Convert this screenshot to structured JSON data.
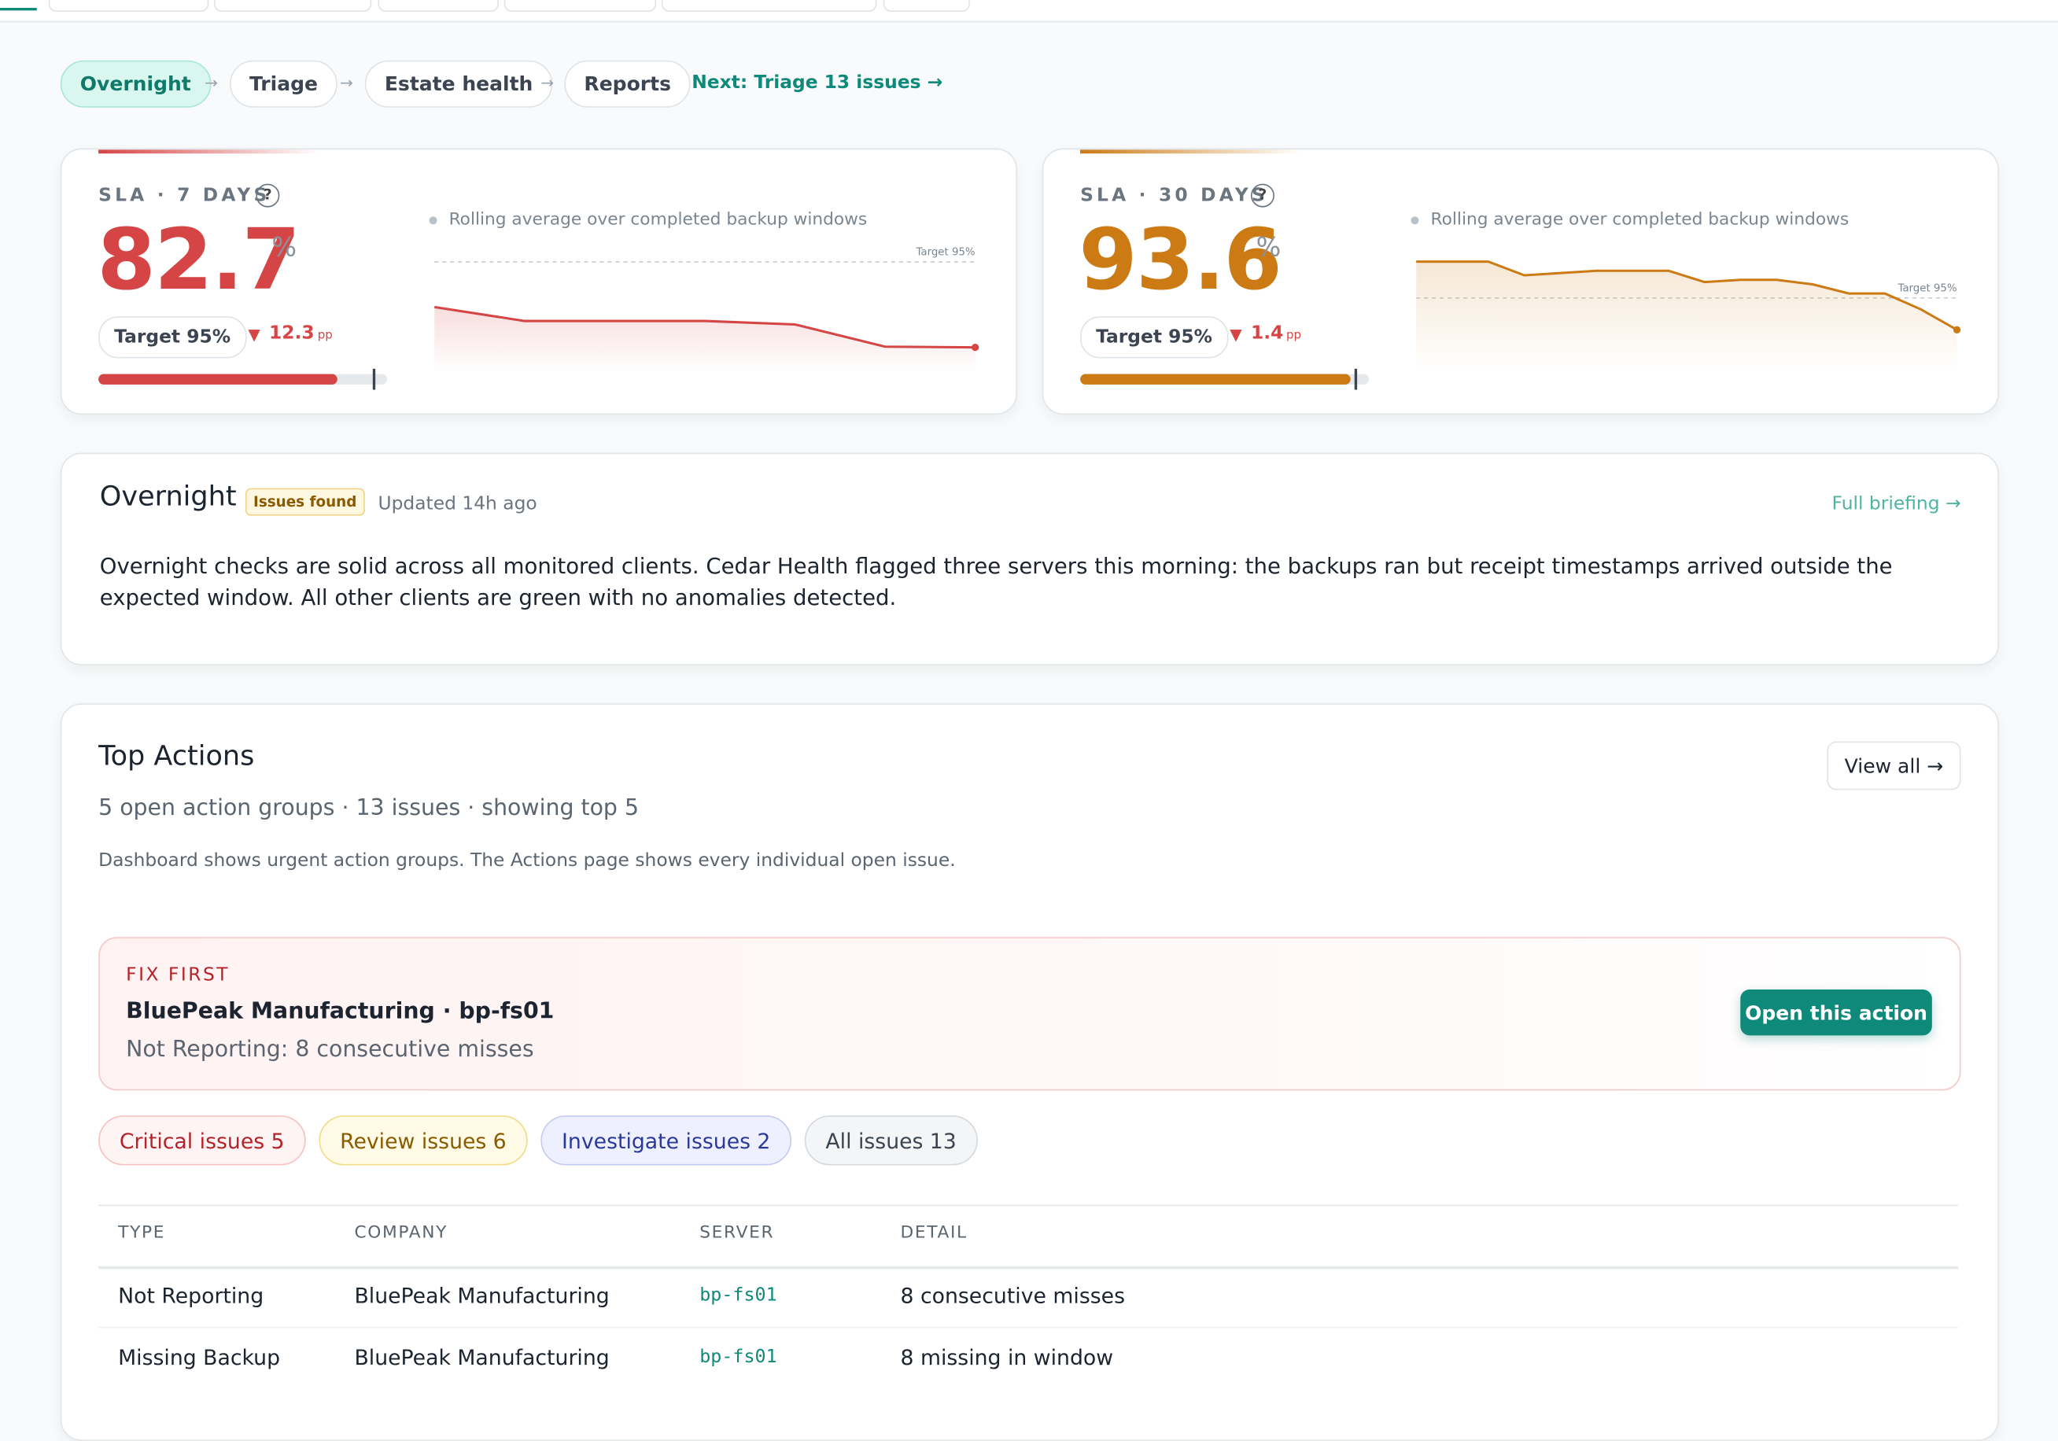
{
  "steps": [
    "Overnight",
    "Triage",
    "Estate health",
    "Reports"
  ],
  "step_separator": "→",
  "next_link": "Next: Triage 13 issues →",
  "sla_cards": [
    {
      "label": "SLA · 7 DAYS",
      "help": "?",
      "value": 82.7,
      "unit": "%",
      "target": {
        "value": 95,
        "label": "Target 95%"
      },
      "delta": {
        "arrow": "▼",
        "value": 12.3,
        "unit": "pp"
      },
      "caption": "Rolling average over completed backup windows",
      "color": "#d64545",
      "sparkline": {
        "ylim": [
          80,
          97
        ],
        "values": [
          88.5,
          86.5,
          86.5,
          86.5,
          86,
          82.8,
          82.7
        ]
      }
    },
    {
      "label": "SLA · 30 DAYS",
      "help": "?",
      "value": 93.6,
      "unit": "%",
      "target": {
        "value": 95,
        "label": "Target 95%"
      },
      "delta": {
        "arrow": "▼",
        "value": 1.4,
        "unit": "pp"
      },
      "caption": "Rolling average over completed backup windows",
      "color": "#cc7a14",
      "sparkline": {
        "ylim": [
          92,
          97.2
        ],
        "values": [
          96.6,
          96.6,
          96.6,
          96,
          96.1,
          96.2,
          96.2,
          96.2,
          95.7,
          95.8,
          95.8,
          95.6,
          95.2,
          95.2,
          94.5,
          93.6
        ]
      }
    }
  ],
  "overnight": {
    "title": "Overnight",
    "badge": "Issues found",
    "updated": "Updated 14h ago",
    "link": "Full briefing →",
    "text": "Overnight checks are solid across all monitored clients. Cedar Health flagged three servers this morning: the backups ran but receipt timestamps arrived outside the expected window. All other clients are green with no anomalies detected."
  },
  "top_actions": {
    "title": "Top Actions",
    "view_all": "View all →",
    "summary": "5 open action groups · 13 issues · showing top 5",
    "note": "Dashboard shows urgent action groups. The Actions page shows every individual open issue.",
    "fix_first": {
      "label": "FIX FIRST",
      "title": "BluePeak Manufacturing · bp-fs01",
      "detail": "Not Reporting: 8 consecutive misses",
      "button": "Open this action"
    },
    "filters": [
      {
        "label": "Critical issues",
        "count": 5
      },
      {
        "label": "Review issues",
        "count": 6
      },
      {
        "label": "Investigate issues",
        "count": 2
      },
      {
        "label": "All issues",
        "count": 13
      }
    ],
    "table": {
      "columns": [
        "TYPE",
        "COMPANY",
        "SERVER",
        "DETAIL"
      ],
      "rows": [
        [
          "Not Reporting",
          "BluePeak Manufacturing",
          "bp-fs01",
          "8 consecutive misses"
        ],
        [
          "Missing Backup",
          "BluePeak Manufacturing",
          "bp-fs01",
          "8 missing in window"
        ]
      ]
    }
  }
}
